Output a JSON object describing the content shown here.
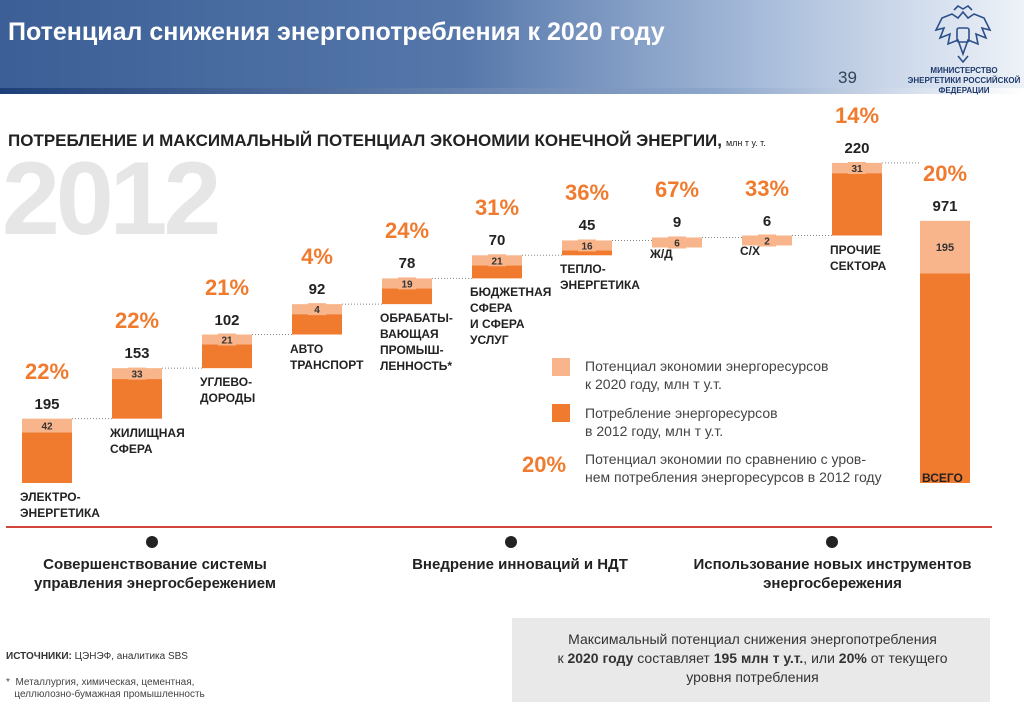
{
  "header": {
    "title": "Потенциал снижения энергопотребления к 2020 году",
    "page_number": "39",
    "ministry": "МИНИСТЕРСТВО ЭНЕРГЕТИКИ РОССИЙСКОЙ ФЕДЕРАЦИИ",
    "emblem_icon": "russian-eagle-emblem-icon"
  },
  "chart_title": "ПОТРЕБЛЕНИЕ И МАКСИМАЛЬНЫЙ ПОТЕНЦИАЛ ЭКОНОМИИ КОНЕЧНОЙ ЭНЕРГИИ,",
  "chart_unit": "млн т у. т.",
  "year_label": "2012",
  "colors": {
    "consumption": "#f07b2e",
    "savings": "#f8b48a",
    "pct_text": "#f07b2e"
  },
  "chart_data": {
    "type": "bar",
    "subtype": "waterfall-stacked",
    "categories": [
      "ЭЛЕКТРО-\nЭНЕРГЕТИКА",
      "ЖИЛИЩНАЯ\nСФЕРА",
      "УГЛЕВО-\nДОРОДЫ",
      "АВТО\nТРАНСПОРТ",
      "ОБРАБАТЫ-\nВАЮЩАЯ\nПРОМЫШ-\nЛЕННОСТЬ*",
      "БЮДЖЕТНАЯ\nСФЕРА\nИ СФЕРА\nУСЛУГ",
      "ТЕПЛО-\nЭНЕРГЕТИКА",
      "Ж/Д",
      "С/Х",
      "ПРОЧИЕ\nСЕКТОРА",
      "ВСЕГО"
    ],
    "consumption": [
      195,
      153,
      102,
      92,
      78,
      70,
      45,
      9,
      6,
      220,
      971
    ],
    "savings_potential": [
      42,
      33,
      21,
      4,
      19,
      21,
      16,
      6,
      2,
      31,
      195
    ],
    "savings_percent": [
      "22%",
      "22%",
      "21%",
      "4%",
      "24%",
      "31%",
      "36%",
      "67%",
      "33%",
      "14%",
      "20%"
    ],
    "series": [
      {
        "name": "Потенциал экономии энергоресурсов к 2020 году, млн т у.т."
      },
      {
        "name": "Потребление энергоресурсов в 2012 году, млн т у.т."
      }
    ]
  },
  "legend": {
    "savings": "Потенциал экономии энергоресурсов\nк 2020 году, млн т у.т.",
    "consumption": "Потребление энергоресурсов\nв 2012 году, млн т у.т.",
    "pct_sample": "20%",
    "pct_text": "Потенциал экономии по сравнению с уров-\nнем потребления энергоресурсов в 2012 году"
  },
  "timeline": {
    "steps": [
      "Совершенствование системы\nуправления энергосбережением",
      "Внедрение инноваций и НДТ",
      "Использование новых инструментов\nэнергосбережения"
    ]
  },
  "sources": {
    "label": "ИСТОЧНИКИ:",
    "text": "ЦЭНЭФ, аналитика SBS"
  },
  "footnote": "*  Металлургия, химическая, цементная,\n   целлюлозно-бумажная промышленность",
  "summary": {
    "line1": "Максимальный потенциал снижения энергопотребления",
    "pre": "к ",
    "b1": "2020 году",
    "mid1": " составляет ",
    "b2": "195 млн т у.т.",
    "mid2": ", или ",
    "b3": "20%",
    "post": " от текущего",
    "line3": "уровня потребления"
  }
}
